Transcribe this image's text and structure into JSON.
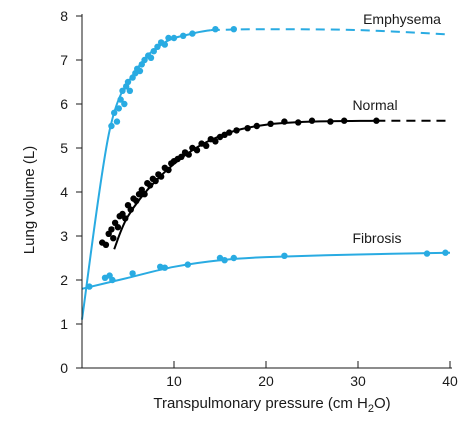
{
  "chart_data": {
    "type": "scatter",
    "title": "",
    "xlabel_main": "Transpulmonary pressure (cm H",
    "xlabel_sub": "2",
    "xlabel_end": "O)",
    "ylabel": "Lung volume (L)",
    "xlim": [
      0,
      40
    ],
    "ylim": [
      0,
      8
    ],
    "xticks": [
      0,
      10,
      20,
      30,
      40
    ],
    "xtick_labels": [
      "0",
      "10",
      "20",
      "30",
      "40"
    ],
    "yticks": [
      0,
      1,
      2,
      3,
      4,
      5,
      6,
      7,
      8
    ],
    "ytick_labels": [
      "0",
      "1",
      "2",
      "3",
      "4",
      "5",
      "6",
      "7",
      "8"
    ],
    "grid": false,
    "series": [
      {
        "name": "Emphysema",
        "color": "#29abe2",
        "points": [
          [
            3.2,
            5.5
          ],
          [
            3.5,
            5.8
          ],
          [
            3.8,
            5.6
          ],
          [
            4.0,
            5.9
          ],
          [
            4.2,
            6.1
          ],
          [
            4.4,
            6.3
          ],
          [
            4.6,
            6.0
          ],
          [
            4.8,
            6.4
          ],
          [
            5.0,
            6.5
          ],
          [
            5.2,
            6.3
          ],
          [
            5.5,
            6.6
          ],
          [
            5.8,
            6.7
          ],
          [
            6.0,
            6.8
          ],
          [
            6.3,
            6.75
          ],
          [
            6.5,
            6.9
          ],
          [
            6.8,
            7.0
          ],
          [
            7.2,
            7.1
          ],
          [
            7.5,
            7.05
          ],
          [
            7.8,
            7.2
          ],
          [
            8.2,
            7.3
          ],
          [
            8.6,
            7.4
          ],
          [
            9.0,
            7.35
          ],
          [
            9.4,
            7.5
          ],
          [
            10.0,
            7.5
          ],
          [
            11.0,
            7.55
          ],
          [
            12.0,
            7.6
          ],
          [
            14.5,
            7.7
          ],
          [
            16.5,
            7.7
          ]
        ],
        "fit_solid": [
          [
            0,
            1.1
          ],
          [
            3,
            5.4
          ],
          [
            6,
            6.8
          ],
          [
            9,
            7.4
          ],
          [
            12,
            7.6
          ],
          [
            14,
            7.68
          ]
        ],
        "fit_dashed": [
          [
            14,
            7.68
          ],
          [
            20,
            7.7
          ],
          [
            30,
            7.68
          ],
          [
            40,
            7.58
          ]
        ]
      },
      {
        "name": "Normal",
        "color": "#000000",
        "points": [
          [
            2.2,
            2.85
          ],
          [
            2.6,
            2.8
          ],
          [
            2.9,
            3.05
          ],
          [
            3.2,
            3.15
          ],
          [
            3.4,
            2.95
          ],
          [
            3.6,
            3.3
          ],
          [
            3.9,
            3.2
          ],
          [
            4.1,
            3.45
          ],
          [
            4.4,
            3.5
          ],
          [
            4.7,
            3.4
          ],
          [
            5.0,
            3.7
          ],
          [
            5.3,
            3.6
          ],
          [
            5.6,
            3.85
          ],
          [
            5.9,
            3.8
          ],
          [
            6.2,
            3.95
          ],
          [
            6.5,
            4.05
          ],
          [
            6.8,
            3.95
          ],
          [
            7.1,
            4.2
          ],
          [
            7.4,
            4.15
          ],
          [
            7.7,
            4.3
          ],
          [
            8.0,
            4.25
          ],
          [
            8.3,
            4.4
          ],
          [
            8.6,
            4.35
          ],
          [
            9.0,
            4.55
          ],
          [
            9.4,
            4.5
          ],
          [
            9.7,
            4.65
          ],
          [
            10.0,
            4.7
          ],
          [
            10.4,
            4.75
          ],
          [
            10.8,
            4.8
          ],
          [
            11.2,
            4.9
          ],
          [
            11.6,
            4.85
          ],
          [
            12.0,
            5.0
          ],
          [
            12.5,
            4.95
          ],
          [
            13.0,
            5.1
          ],
          [
            13.5,
            5.05
          ],
          [
            14.0,
            5.2
          ],
          [
            14.5,
            5.15
          ],
          [
            15.0,
            5.25
          ],
          [
            15.5,
            5.3
          ],
          [
            16.0,
            5.35
          ],
          [
            16.8,
            5.4
          ],
          [
            18.0,
            5.45
          ],
          [
            19.0,
            5.5
          ],
          [
            20.5,
            5.55
          ],
          [
            22.0,
            5.6
          ],
          [
            23.5,
            5.58
          ],
          [
            25.0,
            5.62
          ],
          [
            27.0,
            5.6
          ],
          [
            28.5,
            5.62
          ],
          [
            32.0,
            5.62
          ]
        ],
        "fit_solid": [
          [
            3.5,
            2.7
          ],
          [
            5,
            3.45
          ],
          [
            8,
            4.25
          ],
          [
            12,
            4.95
          ],
          [
            16,
            5.35
          ],
          [
            20,
            5.53
          ],
          [
            25,
            5.6
          ],
          [
            32,
            5.62
          ]
        ],
        "fit_dashed": [
          [
            32,
            5.62
          ],
          [
            40,
            5.62
          ]
        ]
      },
      {
        "name": "Fibrosis",
        "color": "#29abe2",
        "points": [
          [
            0.8,
            1.85
          ],
          [
            2.5,
            2.05
          ],
          [
            3.0,
            2.1
          ],
          [
            3.3,
            2.0
          ],
          [
            5.5,
            2.15
          ],
          [
            8.5,
            2.3
          ],
          [
            9.0,
            2.28
          ],
          [
            11.5,
            2.35
          ],
          [
            15.0,
            2.5
          ],
          [
            15.5,
            2.45
          ],
          [
            16.5,
            2.5
          ],
          [
            22.0,
            2.55
          ],
          [
            37.5,
            2.6
          ],
          [
            39.5,
            2.62
          ]
        ],
        "fit_solid": [
          [
            0,
            1.8
          ],
          [
            5,
            2.05
          ],
          [
            10,
            2.3
          ],
          [
            15,
            2.45
          ],
          [
            20,
            2.52
          ],
          [
            30,
            2.58
          ],
          [
            40,
            2.62
          ]
        ]
      }
    ],
    "annotations": [
      "Emphysema",
      "Normal",
      "Fibrosis"
    ]
  }
}
